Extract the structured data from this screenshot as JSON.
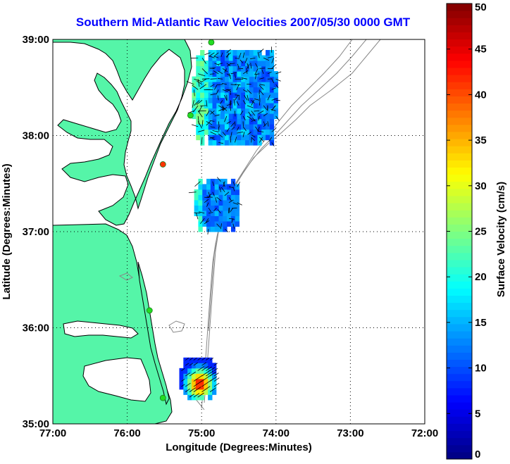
{
  "title": "Southern Mid-Atlantic Raw Velocities 2007/05/30 0000 GMT",
  "x_axis": {
    "label": "Longitude (Degrees:Minutes)",
    "ticks": [
      "77:00",
      "76:00",
      "75:00",
      "74:00",
      "73:00",
      "72:00"
    ]
  },
  "y_axis": {
    "label": "Latitude (Degrees:Minutes)",
    "ticks": [
      "39:00",
      "38:00",
      "37:00",
      "36:00",
      "35:00"
    ]
  },
  "colorbar": {
    "label": "Surface Velocity (cm/s)",
    "min": 0,
    "max": 50,
    "ticks": [
      "0",
      "5",
      "10",
      "15",
      "20",
      "25",
      "30",
      "35",
      "40",
      "45",
      "50"
    ]
  },
  "colors": {
    "land": "#55f5a8",
    "ocean": "#ffffff",
    "title": "#0000ff",
    "grid": "#000000",
    "bathymetry": "#808080",
    "station": "#22dd22",
    "station_highlight": "#ff3300"
  },
  "map_extent": {
    "lon_west": -77.0,
    "lon_east": -72.0,
    "lat_south": 35.0,
    "lat_north": 39.0
  },
  "stations": [
    {
      "lon": -74.87,
      "lat": 38.97,
      "color": "green"
    },
    {
      "lon": -75.15,
      "lat": 38.21,
      "color": "green"
    },
    {
      "lon": -75.52,
      "lat": 37.7,
      "color": "red"
    },
    {
      "lon": -75.7,
      "lat": 36.18,
      "color": "green"
    },
    {
      "lon": -75.52,
      "lat": 35.27,
      "color": "green"
    }
  ],
  "current_patches": [
    {
      "region": "north",
      "lon_range": [
        -75.13,
        -74.0
      ],
      "lat_range": [
        37.9,
        38.85
      ],
      "speed_range_cm_s": [
        5,
        25
      ]
    },
    {
      "region": "middle",
      "lon_range": [
        -75.1,
        -74.53
      ],
      "lat_range": [
        37.0,
        37.5
      ],
      "speed_range_cm_s": [
        6,
        22
      ]
    },
    {
      "region": "south",
      "lon_range": [
        -75.3,
        -74.85
      ],
      "lat_range": [
        35.25,
        35.65
      ],
      "speed_range_cm_s": [
        8,
        48
      ]
    }
  ]
}
